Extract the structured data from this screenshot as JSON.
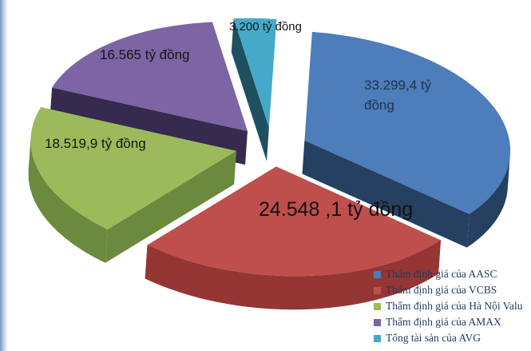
{
  "chart_data": {
    "type": "pie",
    "style": "3d-exploded",
    "unit": "tỷ đồng",
    "start_angle_deg": 0,
    "direction": "clockwise",
    "legend_position": "bottom-right",
    "slices": [
      {
        "key": "aasc",
        "legend_label": "Thẩm định giá của AASC",
        "value": 33299.4,
        "value_label": "33.299,4 tỷ đồng",
        "color": "#4d7dba",
        "side_color": "#254061"
      },
      {
        "key": "vcbs",
        "legend_label": "Thẩm định giá của  VCBS",
        "value": 24548.1,
        "value_label": "24.548 ,1 tỷ đồng",
        "color": "#bf4f4c",
        "side_color": "#943634"
      },
      {
        "key": "hanoi-valu",
        "legend_label": "Thẩm định giá của Hà Nội Valu",
        "value": 18519.9,
        "value_label": "18.519,9 tỷ đồng",
        "color": "#9cba5a",
        "side_color": "#6b8a3e"
      },
      {
        "key": "amax",
        "legend_label": "Thẩm định giá của AMAX",
        "value": 16565,
        "value_label": "16.565 tỷ đồng",
        "color": "#7d64a4",
        "side_color": "#362a4e"
      },
      {
        "key": "avg",
        "legend_label": "Tổng tài sản của AVG",
        "value": 3200,
        "value_label": "3.200 tỷ đồng",
        "color": "#45aac8",
        "side_color": "#1f505f"
      }
    ]
  }
}
